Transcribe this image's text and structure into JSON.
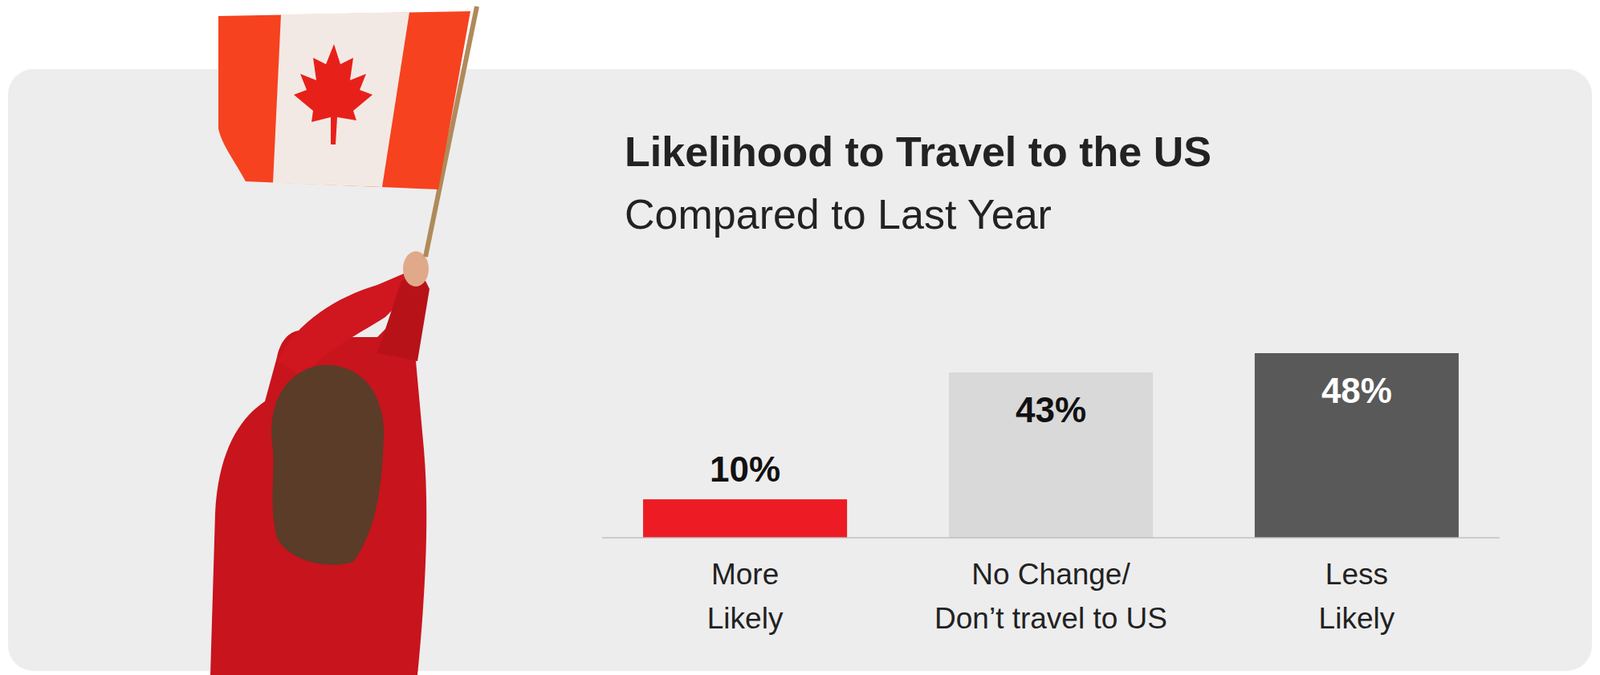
{
  "chart_data": {
    "type": "bar",
    "title": "Likelihood to Travel to the US",
    "subtitle": "Compared to Last Year",
    "categories": [
      "More\nLikely",
      "No Change/\nDon’t travel to US",
      "Less\nLikely"
    ],
    "values": [
      10,
      43,
      48
    ],
    "value_labels": [
      "10%",
      "43%",
      "48%"
    ],
    "colors": [
      "#ed1c24",
      "#d9d9d9",
      "#595959"
    ],
    "data_labels": true,
    "tick_labels": "x",
    "grid": false
  }
}
